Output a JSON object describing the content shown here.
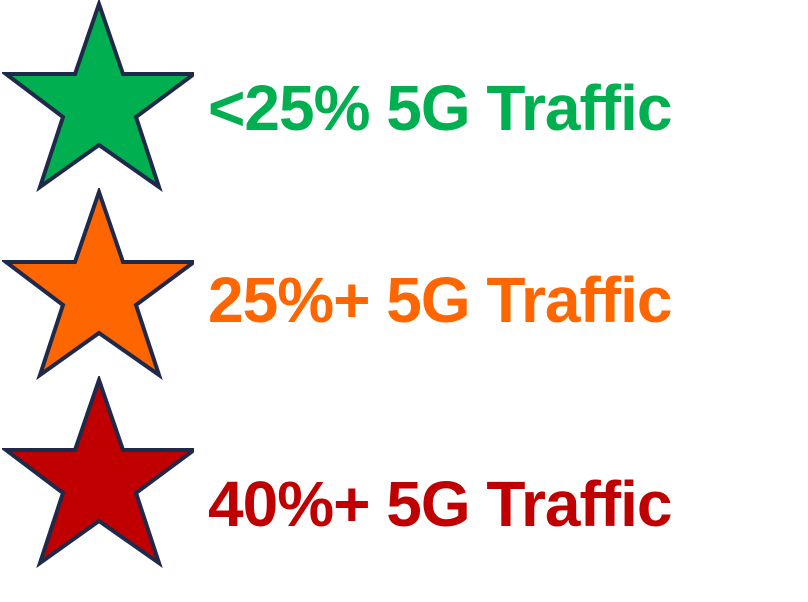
{
  "legend": {
    "items": [
      {
        "label": "<25% 5G Traffic",
        "color": "#00B050",
        "icon": "star-icon"
      },
      {
        "label": "25%+ 5G Traffic",
        "color": "#FF6600",
        "icon": "star-icon"
      },
      {
        "label": "40%+ 5G Traffic",
        "color": "#C00000",
        "icon": "star-icon"
      }
    ],
    "outline_color": "#1F2A4A"
  }
}
